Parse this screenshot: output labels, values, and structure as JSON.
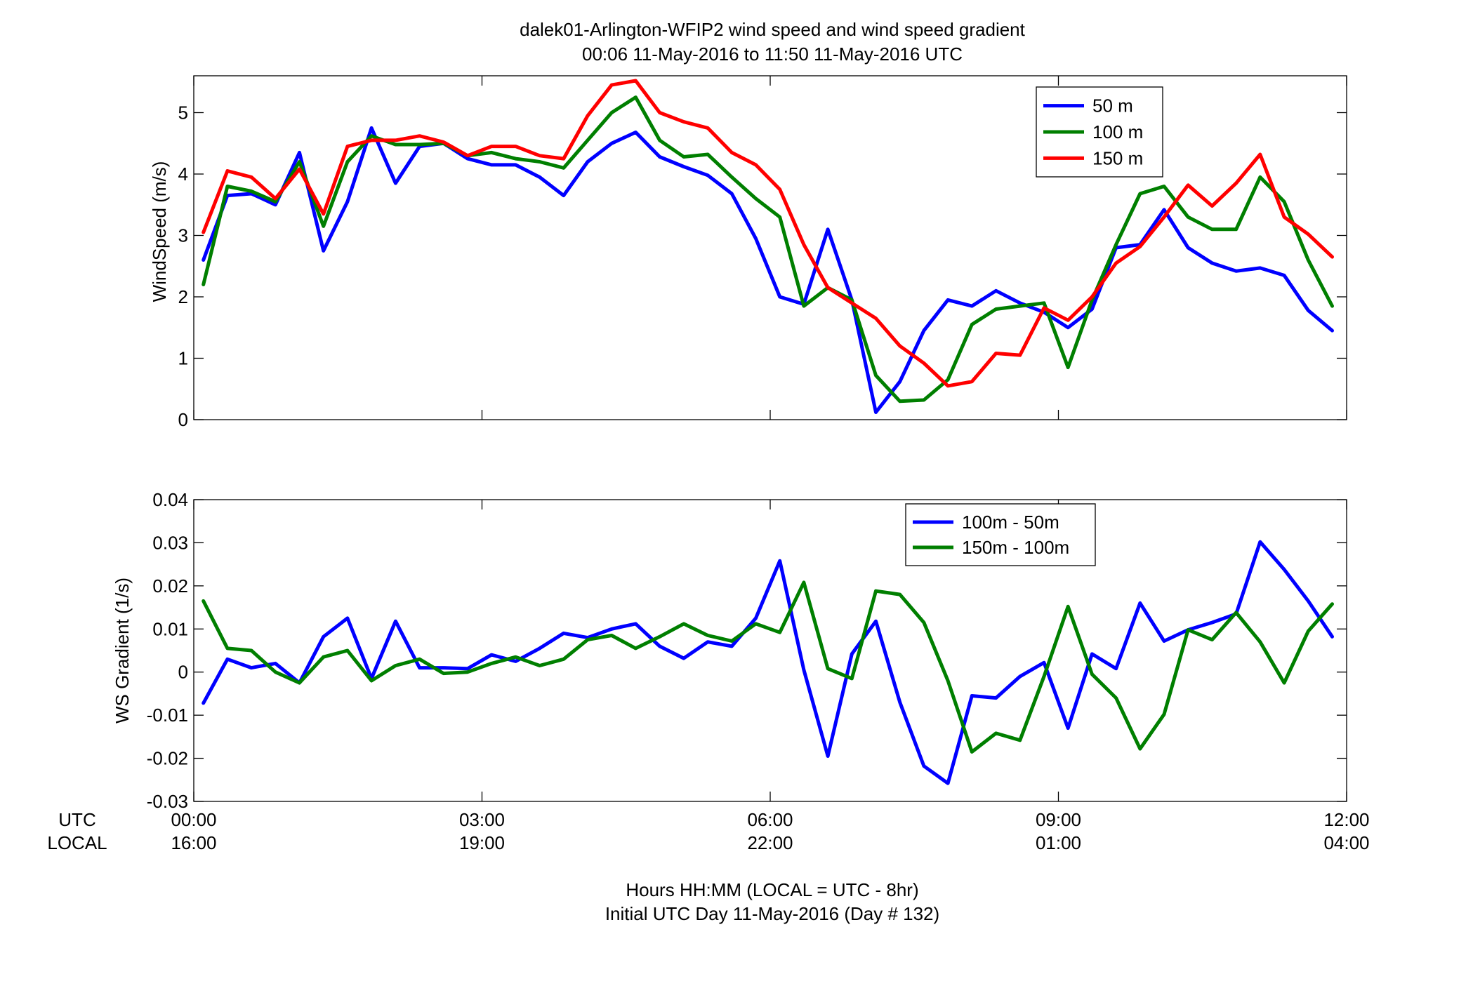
{
  "figure": {
    "title": "dalek01-Arlington-WFIP2  wind speed and wind speed gradient",
    "subtitle": "00:06 11-May-2016 to 11:50 11-May-2016  UTC",
    "xlabel_line1": "Hours HH:MM  (LOCAL = UTC - 8hr)",
    "xlabel_line2": "Initial UTC Day 11-May-2016 (Day # 132)",
    "row_label_utc": "UTC",
    "row_label_local": "LOCAL",
    "x_ticks_utc": [
      "00:00",
      "03:00",
      "06:00",
      "09:00",
      "12:00"
    ],
    "x_ticks_local": [
      "16:00",
      "19:00",
      "22:00",
      "01:00",
      "04:00"
    ],
    "x_tick_hours": [
      0,
      3,
      6,
      9,
      12
    ]
  },
  "colors": {
    "blue": "#0000ff",
    "green": "#007f00",
    "red": "#ff0000"
  },
  "chart_data": [
    {
      "type": "line",
      "ylabel": "WindSpeed (m/s)",
      "xlabel": "",
      "xlim": [
        0,
        12
      ],
      "ylim": [
        0,
        5.6
      ],
      "y_ticks": [
        0,
        1,
        2,
        3,
        4,
        5
      ],
      "y_tick_labels": [
        "0",
        "1",
        "2",
        "3",
        "4",
        "5"
      ],
      "grid": false,
      "legend_position": "top-right",
      "x": [
        0.1,
        0.35,
        0.6,
        0.85,
        1.1,
        1.35,
        1.6,
        1.85,
        2.1,
        2.35,
        2.6,
        2.85,
        3.1,
        3.35,
        3.6,
        3.85,
        4.1,
        4.35,
        4.6,
        4.85,
        5.1,
        5.35,
        5.6,
        5.85,
        6.1,
        6.35,
        6.6,
        6.85,
        7.1,
        7.35,
        7.6,
        7.85,
        8.1,
        8.35,
        8.6,
        8.85,
        9.1,
        9.35,
        9.6,
        9.85,
        10.1,
        10.35,
        10.6,
        10.85,
        11.1,
        11.35,
        11.6,
        11.85
      ],
      "series": [
        {
          "name": "50 m",
          "color": "blue",
          "values": [
            2.6,
            3.65,
            3.68,
            3.5,
            4.35,
            2.75,
            3.55,
            4.75,
            3.85,
            4.45,
            4.5,
            4.25,
            4.15,
            4.15,
            3.95,
            3.65,
            4.2,
            4.5,
            4.68,
            4.28,
            4.12,
            3.98,
            3.68,
            2.95,
            2.0,
            1.88,
            3.1,
            1.95,
            0.12,
            0.62,
            1.45,
            1.95,
            1.85,
            2.1,
            1.9,
            1.75,
            1.5,
            1.8,
            2.8,
            2.85,
            3.42,
            2.8,
            2.55,
            2.42,
            2.47,
            2.35,
            1.78,
            1.45
          ]
        },
        {
          "name": "100 m",
          "color": "green",
          "values": [
            2.2,
            3.8,
            3.72,
            3.55,
            4.2,
            3.15,
            4.2,
            4.62,
            4.48,
            4.48,
            4.5,
            4.3,
            4.35,
            4.25,
            4.2,
            4.1,
            4.55,
            5.0,
            5.25,
            4.55,
            4.28,
            4.32,
            3.95,
            3.6,
            3.3,
            1.85,
            2.15,
            1.95,
            0.72,
            0.3,
            0.32,
            0.65,
            1.55,
            1.8,
            1.85,
            1.9,
            0.85,
            1.95,
            2.85,
            3.68,
            3.8,
            3.3,
            3.1,
            3.1,
            3.95,
            3.55,
            2.6,
            1.85
          ]
        },
        {
          "name": "150 m",
          "color": "red",
          "values": [
            3.05,
            4.05,
            3.95,
            3.6,
            4.08,
            3.35,
            4.45,
            4.55,
            4.55,
            4.62,
            4.52,
            4.3,
            4.45,
            4.45,
            4.3,
            4.25,
            4.95,
            5.45,
            5.52,
            5.0,
            4.85,
            4.75,
            4.35,
            4.15,
            3.75,
            2.85,
            2.15,
            1.9,
            1.65,
            1.2,
            0.92,
            0.55,
            0.62,
            1.08,
            1.05,
            1.82,
            1.62,
            2.0,
            2.55,
            2.82,
            3.3,
            3.82,
            3.48,
            3.85,
            4.32,
            3.3,
            3.02,
            2.65
          ]
        }
      ]
    },
    {
      "type": "line",
      "ylabel": "WS Gradient (1/s)",
      "xlabel": "",
      "xlim": [
        0,
        12
      ],
      "ylim": [
        -0.03,
        0.04
      ],
      "y_ticks": [
        -0.03,
        -0.02,
        -0.01,
        0,
        0.01,
        0.02,
        0.03,
        0.04
      ],
      "y_tick_labels": [
        "-0.03",
        "-0.02",
        "-0.01",
        "0",
        "0.01",
        "0.02",
        "0.03",
        "0.04"
      ],
      "grid": false,
      "legend_position": "top-right",
      "x": [
        0.1,
        0.35,
        0.6,
        0.85,
        1.1,
        1.35,
        1.6,
        1.85,
        2.1,
        2.35,
        2.6,
        2.85,
        3.1,
        3.35,
        3.6,
        3.85,
        4.1,
        4.35,
        4.6,
        4.85,
        5.1,
        5.35,
        5.6,
        5.85,
        6.1,
        6.35,
        6.6,
        6.85,
        7.1,
        7.35,
        7.6,
        7.85,
        8.1,
        8.35,
        8.6,
        8.85,
        9.1,
        9.35,
        9.6,
        9.85,
        10.1,
        10.35,
        10.6,
        10.85,
        11.1,
        11.35,
        11.6,
        11.85
      ],
      "series": [
        {
          "name": "100m - 50m",
          "color": "blue",
          "values": [
            -0.0072,
            0.003,
            0.001,
            0.002,
            -0.0025,
            0.0082,
            0.0125,
            -0.0015,
            0.0118,
            0.001,
            0.001,
            0.0008,
            0.004,
            0.0025,
            0.0055,
            0.009,
            0.008,
            0.01,
            0.0112,
            0.006,
            0.0032,
            0.007,
            0.006,
            0.0125,
            0.0258,
            0.0005,
            -0.0195,
            0.0042,
            0.0118,
            -0.007,
            -0.0218,
            -0.0258,
            -0.0055,
            -0.006,
            -0.001,
            0.0022,
            -0.013,
            0.0042,
            0.0008,
            0.016,
            0.0072,
            0.0098,
            0.0115,
            0.0135,
            0.0302,
            0.0238,
            0.0165,
            0.0082
          ]
        },
        {
          "name": "150m - 100m",
          "color": "green",
          "values": [
            0.0165,
            0.0055,
            0.005,
            0.0,
            -0.0025,
            0.0035,
            0.005,
            -0.002,
            0.0015,
            0.003,
            -0.0003,
            0.0,
            0.002,
            0.0035,
            0.0015,
            0.003,
            0.0075,
            0.0085,
            0.0055,
            0.0082,
            0.0112,
            0.0085,
            0.0072,
            0.0112,
            0.0092,
            0.0208,
            0.0008,
            -0.0015,
            0.0188,
            0.018,
            0.0115,
            -0.002,
            -0.0185,
            -0.0142,
            -0.0158,
            -0.001,
            0.0152,
            -0.0005,
            -0.006,
            -0.0178,
            -0.0098,
            0.0098,
            0.0075,
            0.0138,
            0.007,
            -0.0025,
            0.0095,
            0.0158
          ]
        }
      ]
    }
  ]
}
